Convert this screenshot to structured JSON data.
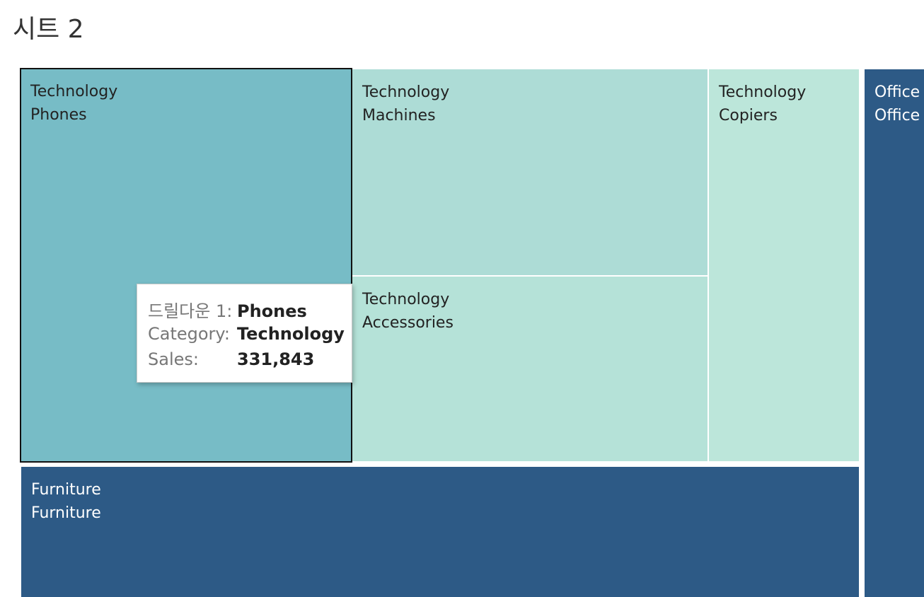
{
  "sheet": {
    "title": "시트 2"
  },
  "colors": {
    "phones": "#77BCC6",
    "machines": "#ADDCD6",
    "accessories": "#B5E2D8",
    "copiers": "#BCE6DA",
    "furniture": "#2D5A86",
    "office": "#2D5A86",
    "dark_text": "#222222",
    "light_text": "#FFFFFF"
  },
  "chart_data": {
    "type": "treemap",
    "title": "시트 2",
    "measure": "Sales",
    "items": [
      {
        "id": "phones",
        "category": "Technology",
        "name": "Phones",
        "sales": 331843,
        "selected": true
      },
      {
        "id": "machines",
        "category": "Technology",
        "name": "Machines"
      },
      {
        "id": "accessories",
        "category": "Technology",
        "name": "Accessories"
      },
      {
        "id": "copiers",
        "category": "Technology",
        "name": "Copiers"
      },
      {
        "id": "furniture",
        "category": "Furniture",
        "name": "Furniture"
      },
      {
        "id": "office",
        "category": "Office",
        "name": "Office"
      }
    ]
  },
  "tooltip": {
    "drill_label": "드릴다운 1:",
    "drill_value": "Phones",
    "category_label": "Category:",
    "category_value": "Technology",
    "sales_label": "Sales:",
    "sales_value": "331,843"
  }
}
